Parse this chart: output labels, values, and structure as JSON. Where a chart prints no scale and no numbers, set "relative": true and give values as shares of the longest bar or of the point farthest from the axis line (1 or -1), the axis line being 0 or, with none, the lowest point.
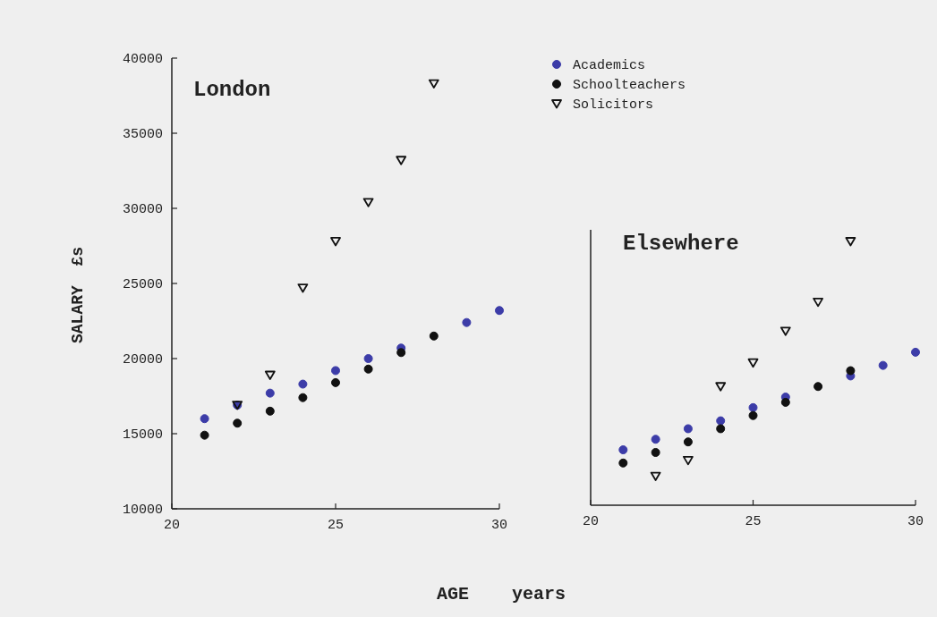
{
  "chart_data": [
    {
      "type": "scatter",
      "title": "London",
      "xlabel": "AGE    years",
      "ylabel": "SALARY  £s",
      "x": [
        21,
        22,
        23,
        24,
        25,
        26,
        27,
        28,
        29,
        30
      ],
      "xlim": [
        20,
        30
      ],
      "xticks": [
        20,
        25,
        30
      ],
      "ylim": [
        10000,
        40000
      ],
      "yticks": [
        10000,
        15000,
        20000,
        25000,
        30000,
        35000,
        40000
      ],
      "legend": "top right",
      "series": [
        {
          "name": "Academics",
          "color": "#3c3ca8",
          "marker": "circle",
          "values": [
            16000,
            16900,
            17700,
            18300,
            19200,
            20000,
            20700,
            null,
            22400,
            23200
          ]
        },
        {
          "name": "Schoolteachers",
          "color": "#111111",
          "marker": "circle",
          "values": [
            14900,
            15700,
            16500,
            17400,
            18400,
            19300,
            20400,
            21500,
            null,
            null
          ]
        },
        {
          "name": "Solicitors",
          "color": "#111111",
          "marker": "triangle",
          "values": [
            null,
            16900,
            18900,
            24700,
            27800,
            30400,
            33200,
            38300,
            null,
            null
          ]
        }
      ]
    },
    {
      "type": "scatter",
      "title": "Elsewhere",
      "relative": true,
      "x": [
        21,
        22,
        23,
        24,
        25,
        26,
        27,
        28,
        29,
        30
      ],
      "xlim": [
        20,
        30
      ],
      "xticks": [
        20,
        25,
        30
      ],
      "series": [
        {
          "color": "#3c3ca8",
          "marker": "circle",
          "values": [
            0.21,
            0.25,
            0.29,
            0.32,
            0.37,
            0.41,
            null,
            0.49,
            0.53,
            0.58
          ]
        },
        {
          "color": "#111111",
          "marker": "circle",
          "values": [
            0.16,
            0.2,
            0.24,
            0.29,
            0.34,
            0.39,
            0.45,
            0.51,
            null,
            null
          ]
        },
        {
          "color": "#111111",
          "marker": "triangle",
          "values": [
            null,
            0.11,
            0.17,
            0.45,
            0.54,
            0.66,
            0.77,
            1,
            null,
            null
          ]
        }
      ]
    }
  ]
}
